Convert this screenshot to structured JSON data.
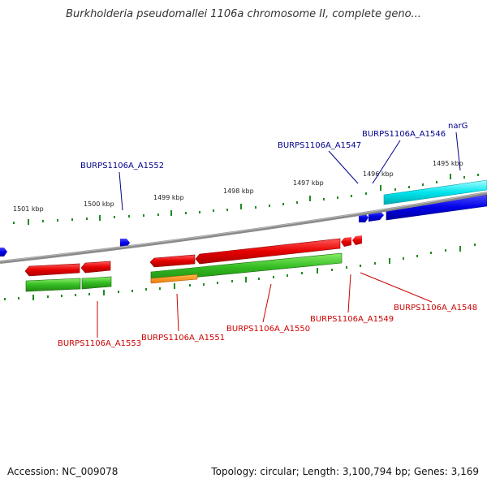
{
  "title": "Burkholderia pseudomallei 1106a chromosome II, complete geno...",
  "accession_text": "Accession: NC_009078",
  "topology_text": "Topology: circular; Length: 3,100,794 bp; Genes: 3,169",
  "colors": {
    "backbone": "#8a8a8a",
    "forward_gene": "#0000e6",
    "forward_cds": "#00e5ee",
    "reverse_gene": "#e60000",
    "reverse_cds": "#33bb22",
    "reverse_misc": "#ff8800",
    "forward_label": "#00008b",
    "reverse_label": "#cc0000",
    "tick": "#228b22"
  },
  "ruler_labels": [
    "1501 kbp",
    "1500 kbp",
    "1499 kbp",
    "1498 kbp",
    "1497 kbp",
    "1496 kbp",
    "1495 kbp"
  ],
  "forward_gene_labels": [
    "BURPS1106A_A1552",
    "BURPS1106A_A1547",
    "BURPS1106A_A1546",
    "narG"
  ],
  "reverse_gene_labels": [
    "BURPS1106A_A1553",
    "BURPS1106A_A1551",
    "BURPS1106A_A1550",
    "BURPS1106A_A1549",
    "BURPS1106A_A1548"
  ]
}
